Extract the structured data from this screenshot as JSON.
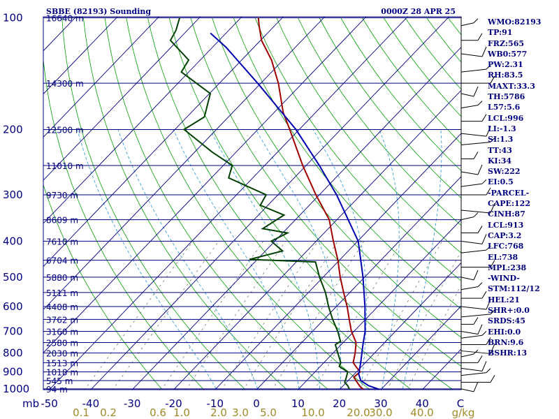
{
  "title_left": "SBBE (82193) Sounding",
  "title_right": "0000Z 28 APR 25",
  "colors": {
    "frame": "#00007f",
    "isobar": "#00007f",
    "isotherm": "#00007f",
    "dry_adiabat": "#00a000",
    "moist_adiabat": "#3aa0d8",
    "mixing_ratio": "#607060",
    "temperature": "#a00000",
    "dewpoint": "#004000",
    "parcel": "#0000b0",
    "mixing_ratio_labels": "#a08a28"
  },
  "parameters": [
    "WMO:82193",
    "TP:91",
    "FRZ:565",
    "WB0:577",
    "PW:2.31",
    "RH:83.5",
    "MAXT:33.3",
    "TH:5786",
    "L57:5.6",
    "LCL:996",
    "LI:-1.3",
    "SI:1.3",
    "TT:43",
    "KI:34",
    "SW:222",
    "EI:0.5",
    "-PARCEL-",
    "CAPE:122",
    "CINH:87",
    "LCL:913",
    "CAP:3.2",
    "LFC:768",
    "EL:738",
    "MPL:238",
    "-WIND-",
    "STM:112/12",
    "HEL:21",
    "SHR+:0.0",
    "SRDS:45",
    "EHI:0.0",
    "BRN:9.6",
    "BSHR:13"
  ],
  "chart_data": {
    "type": "line",
    "diagram": "Skew-T log-P",
    "y_axis_unit": "mb",
    "x_axis_unit_left": "mb",
    "pressure_ticks": [
      100,
      200,
      300,
      400,
      500,
      600,
      700,
      800,
      900,
      1000
    ],
    "temperature_ticks": [
      -50,
      -40,
      -30,
      -20,
      -10,
      0,
      10,
      20,
      30,
      40
    ],
    "temperature_tick_labels": [
      "-50",
      "-40",
      "-30",
      "-20",
      "-10",
      "0",
      "10",
      "20",
      "30",
      "40"
    ],
    "temperature_last_label": "C",
    "mixing_ratio_ticks": [
      "0.1",
      "0.2",
      "0.6",
      "1.0",
      "2.0",
      "3.0",
      "5.0",
      "10.0",
      "20.0",
      "30.0",
      "40.0"
    ],
    "mixing_ratio_unit": "g/kg",
    "height_levels": [
      {
        "p": 100,
        "label": "16640 m"
      },
      {
        "p": 150,
        "label": "14300 m"
      },
      {
        "p": 200,
        "label": "12500 m"
      },
      {
        "p": 250,
        "label": "11010 m"
      },
      {
        "p": 300,
        "label": "9730 m"
      },
      {
        "p": 350,
        "label": "8609 m"
      },
      {
        "p": 400,
        "label": "7610 m"
      },
      {
        "p": 450,
        "label": "6704 m"
      },
      {
        "p": 500,
        "label": "5880 m"
      },
      {
        "p": 550,
        "label": "5111 m"
      },
      {
        "p": 600,
        "label": "4408 m"
      },
      {
        "p": 650,
        "label": "3762 m"
      },
      {
        "p": 700,
        "label": "3160 m"
      },
      {
        "p": 750,
        "label": "2580 m"
      },
      {
        "p": 800,
        "label": "2030 m"
      },
      {
        "p": 850,
        "label": "1513 m"
      },
      {
        "p": 900,
        "label": "1018 m"
      },
      {
        "p": 950,
        "label": "545 m"
      },
      {
        "p": 1000,
        "label": "94 m"
      }
    ],
    "series": [
      {
        "key": "temperature",
        "points": [
          {
            "p": 1007,
            "t": 26.0
          },
          {
            "p": 990,
            "t": 24.5
          },
          {
            "p": 960,
            "t": 22.5
          },
          {
            "p": 930,
            "t": 20.5
          },
          {
            "p": 900,
            "t": 20.8
          },
          {
            "p": 870,
            "t": 18.5
          },
          {
            "p": 850,
            "t": 17.0
          },
          {
            "p": 800,
            "t": 15.2
          },
          {
            "p": 750,
            "t": 13.0
          },
          {
            "p": 700,
            "t": 9.3
          },
          {
            "p": 650,
            "t": 6.0
          },
          {
            "p": 600,
            "t": 2.5
          },
          {
            "p": 550,
            "t": -1.6
          },
          {
            "p": 500,
            "t": -6.0
          },
          {
            "p": 450,
            "t": -10.5
          },
          {
            "p": 400,
            "t": -16.0
          },
          {
            "p": 350,
            "t": -22.0
          },
          {
            "p": 300,
            "t": -31.0
          },
          {
            "p": 250,
            "t": -41.0
          },
          {
            "p": 200,
            "t": -52.5
          },
          {
            "p": 180,
            "t": -58.0
          },
          {
            "p": 150,
            "t": -66.0
          },
          {
            "p": 130,
            "t": -73.0
          },
          {
            "p": 115,
            "t": -80.0
          },
          {
            "p": 105,
            "t": -84.0
          },
          {
            "p": 100,
            "t": -86.0
          }
        ]
      },
      {
        "key": "dewpoint",
        "points": [
          {
            "p": 1007,
            "t": 22.5
          },
          {
            "p": 980,
            "t": 21.0
          },
          {
            "p": 960,
            "t": 19.5
          },
          {
            "p": 940,
            "t": 19.0
          },
          {
            "p": 900,
            "t": 17.8
          },
          {
            "p": 870,
            "t": 14.5
          },
          {
            "p": 850,
            "t": 14.0
          },
          {
            "p": 800,
            "t": 11.0
          },
          {
            "p": 760,
            "t": 8.5
          },
          {
            "p": 745,
            "t": 9.0
          },
          {
            "p": 700,
            "t": 6.0
          },
          {
            "p": 650,
            "t": 2.0
          },
          {
            "p": 600,
            "t": -2.0
          },
          {
            "p": 550,
            "t": -6.0
          },
          {
            "p": 500,
            "t": -11.0
          },
          {
            "p": 455,
            "t": -15.5
          },
          {
            "p": 448,
            "t": -32.0
          },
          {
            "p": 425,
            "t": -26.0
          },
          {
            "p": 400,
            "t": -31.0
          },
          {
            "p": 380,
            "t": -29.0
          },
          {
            "p": 370,
            "t": -36.0
          },
          {
            "p": 340,
            "t": -34.0
          },
          {
            "p": 320,
            "t": -42.0
          },
          {
            "p": 300,
            "t": -43.0
          },
          {
            "p": 270,
            "t": -56.0
          },
          {
            "p": 250,
            "t": -58.0
          },
          {
            "p": 230,
            "t": -66.0
          },
          {
            "p": 200,
            "t": -78.0
          },
          {
            "p": 185,
            "t": -76.0
          },
          {
            "p": 160,
            "t": -80.0
          },
          {
            "p": 140,
            "t": -92.0
          },
          {
            "p": 130,
            "t": -93.0
          },
          {
            "p": 115,
            "t": -102.0
          },
          {
            "p": 108,
            "t": -103.0
          },
          {
            "p": 100,
            "t": -105.0
          }
        ]
      },
      {
        "key": "parcel",
        "points": [
          {
            "p": 1007,
            "t": 30.0
          },
          {
            "p": 980,
            "t": 26.0
          },
          {
            "p": 950,
            "t": 23.0
          },
          {
            "p": 913,
            "t": 21.0
          },
          {
            "p": 850,
            "t": 18.8
          },
          {
            "p": 768,
            "t": 15.5
          },
          {
            "p": 700,
            "t": 12.6
          },
          {
            "p": 600,
            "t": 6.8
          },
          {
            "p": 500,
            "t": -0.5
          },
          {
            "p": 400,
            "t": -10.0
          },
          {
            "p": 300,
            "t": -26.0
          },
          {
            "p": 250,
            "t": -37.0
          },
          {
            "p": 200,
            "t": -51.0
          },
          {
            "p": 150,
            "t": -71.0
          },
          {
            "p": 120,
            "t": -87.0
          },
          {
            "p": 110,
            "t": -94.0
          }
        ]
      }
    ]
  }
}
